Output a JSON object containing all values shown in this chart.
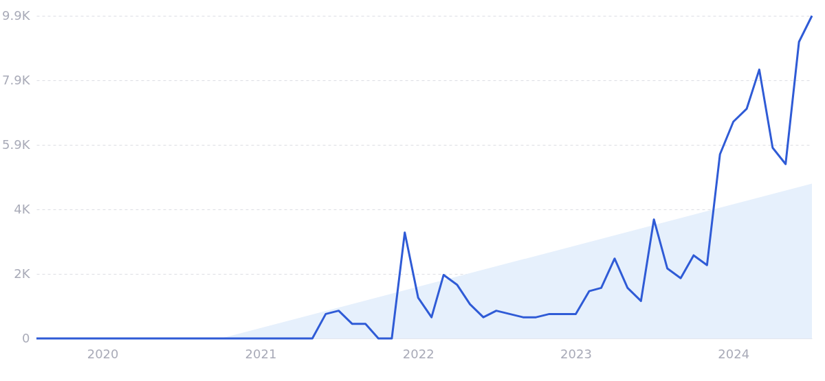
{
  "chart_data": {
    "type": "line",
    "x": [
      "2019-08",
      "2019-09",
      "2019-10",
      "2019-11",
      "2019-12",
      "2020-01",
      "2020-02",
      "2020-03",
      "2020-04",
      "2020-05",
      "2020-06",
      "2020-07",
      "2020-08",
      "2020-09",
      "2020-10",
      "2020-11",
      "2020-12",
      "2021-01",
      "2021-02",
      "2021-03",
      "2021-04",
      "2021-05",
      "2021-06",
      "2021-07",
      "2021-08",
      "2021-09",
      "2021-10",
      "2021-11",
      "2021-12",
      "2022-01",
      "2022-02",
      "2022-03",
      "2022-04",
      "2022-05",
      "2022-06",
      "2022-07",
      "2022-08",
      "2022-09",
      "2022-10",
      "2022-11",
      "2022-12",
      "2023-01",
      "2023-02",
      "2023-03",
      "2023-04",
      "2023-05",
      "2023-06",
      "2023-07",
      "2023-08",
      "2023-09",
      "2023-10",
      "2023-11",
      "2023-12",
      "2024-01",
      "2024-02",
      "2024-03",
      "2024-04",
      "2024-05",
      "2024-06",
      "2024-07"
    ],
    "series": [
      {
        "type": "area",
        "color": "#e6f0fc",
        "x": [
          "2020-10",
          "2024-07"
        ],
        "values": [
          0,
          4750
        ]
      },
      {
        "color": "#2f5bd6",
        "values": [
          0,
          0,
          0,
          0,
          0,
          0,
          0,
          0,
          0,
          0,
          0,
          0,
          0,
          0,
          0,
          0,
          0,
          0,
          0,
          0,
          0,
          0,
          750,
          850,
          450,
          450,
          0,
          0,
          3250,
          1250,
          650,
          1950,
          1650,
          1050,
          650,
          850,
          750,
          650,
          650,
          750,
          750,
          750,
          1450,
          1550,
          2450,
          1550,
          1150,
          3650,
          2150,
          1850,
          2550,
          2250,
          5650,
          6650,
          7050,
          8250,
          5850,
          5350,
          9100,
          9900
        ]
      }
    ],
    "xlim": [
      "2019-08",
      "2024-07"
    ],
    "xticks": [
      "2020",
      "2021",
      "2022",
      "2023",
      "2024"
    ],
    "ylim": [
      0,
      9900
    ],
    "yticks": [
      0,
      {
        "value": 1980,
        "label": "2K"
      },
      {
        "value": 3960,
        "label": "4K"
      },
      {
        "value": 5940,
        "label": "5.9K"
      },
      {
        "value": 7920,
        "label": "7.9K"
      },
      {
        "value": 9900,
        "label": "9.9K"
      }
    ],
    "grid": "y"
  }
}
